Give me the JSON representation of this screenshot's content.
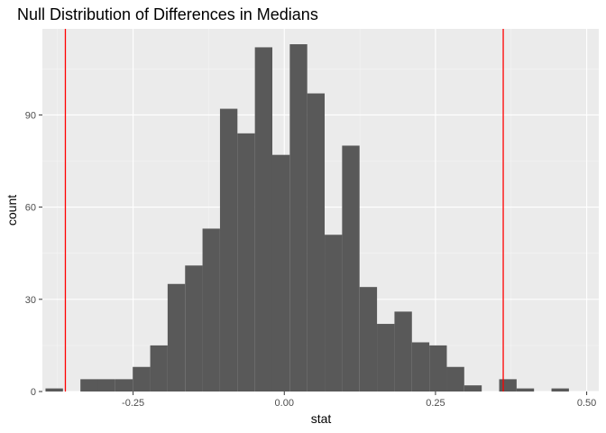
{
  "chart_data": {
    "type": "bar",
    "subtype": "histogram",
    "title": "Null Distribution of Differences in Medians",
    "xlabel": "stat",
    "ylabel": "count",
    "xlim": [
      -0.4,
      0.52
    ],
    "ylim": [
      0,
      118
    ],
    "x_ticks": [
      -0.25,
      0,
      0.25,
      0.5
    ],
    "x_tick_labels": [
      "-0.25",
      "0.00",
      "0.25",
      "0.50"
    ],
    "y_ticks": [
      0,
      30,
      60,
      90
    ],
    "y_tick_labels": [
      "0",
      "30",
      "60",
      "90"
    ],
    "bin_width": 0.02885,
    "bin_centers": [
      -0.3804,
      -0.3516,
      -0.3227,
      -0.2939,
      -0.265,
      -0.2362,
      -0.2073,
      -0.1785,
      -0.1496,
      -0.1208,
      -0.0919,
      -0.0631,
      -0.0342,
      -0.0054,
      0.0235,
      0.0523,
      0.0812,
      0.11,
      0.1389,
      0.1677,
      0.1966,
      0.2254,
      0.2543,
      0.2831,
      0.312,
      0.3408,
      0.3697,
      0.3985,
      0.4274,
      0.4562
    ],
    "counts": [
      1,
      0,
      4,
      4,
      4,
      8,
      15,
      35,
      41,
      53,
      92,
      84,
      112,
      77,
      113,
      97,
      51,
      80,
      34,
      22,
      26,
      16,
      15,
      8,
      2,
      0,
      4,
      1,
      0,
      1
    ],
    "reference_lines": [
      -0.362,
      0.362
    ],
    "colors": {
      "bars": "#595959",
      "reference_line": "#ff0000",
      "panel_background": "#ebebeb",
      "grid_major": "#ffffff",
      "grid_minor": "#f5f5f5"
    },
    "grid": true,
    "legend": "none"
  }
}
